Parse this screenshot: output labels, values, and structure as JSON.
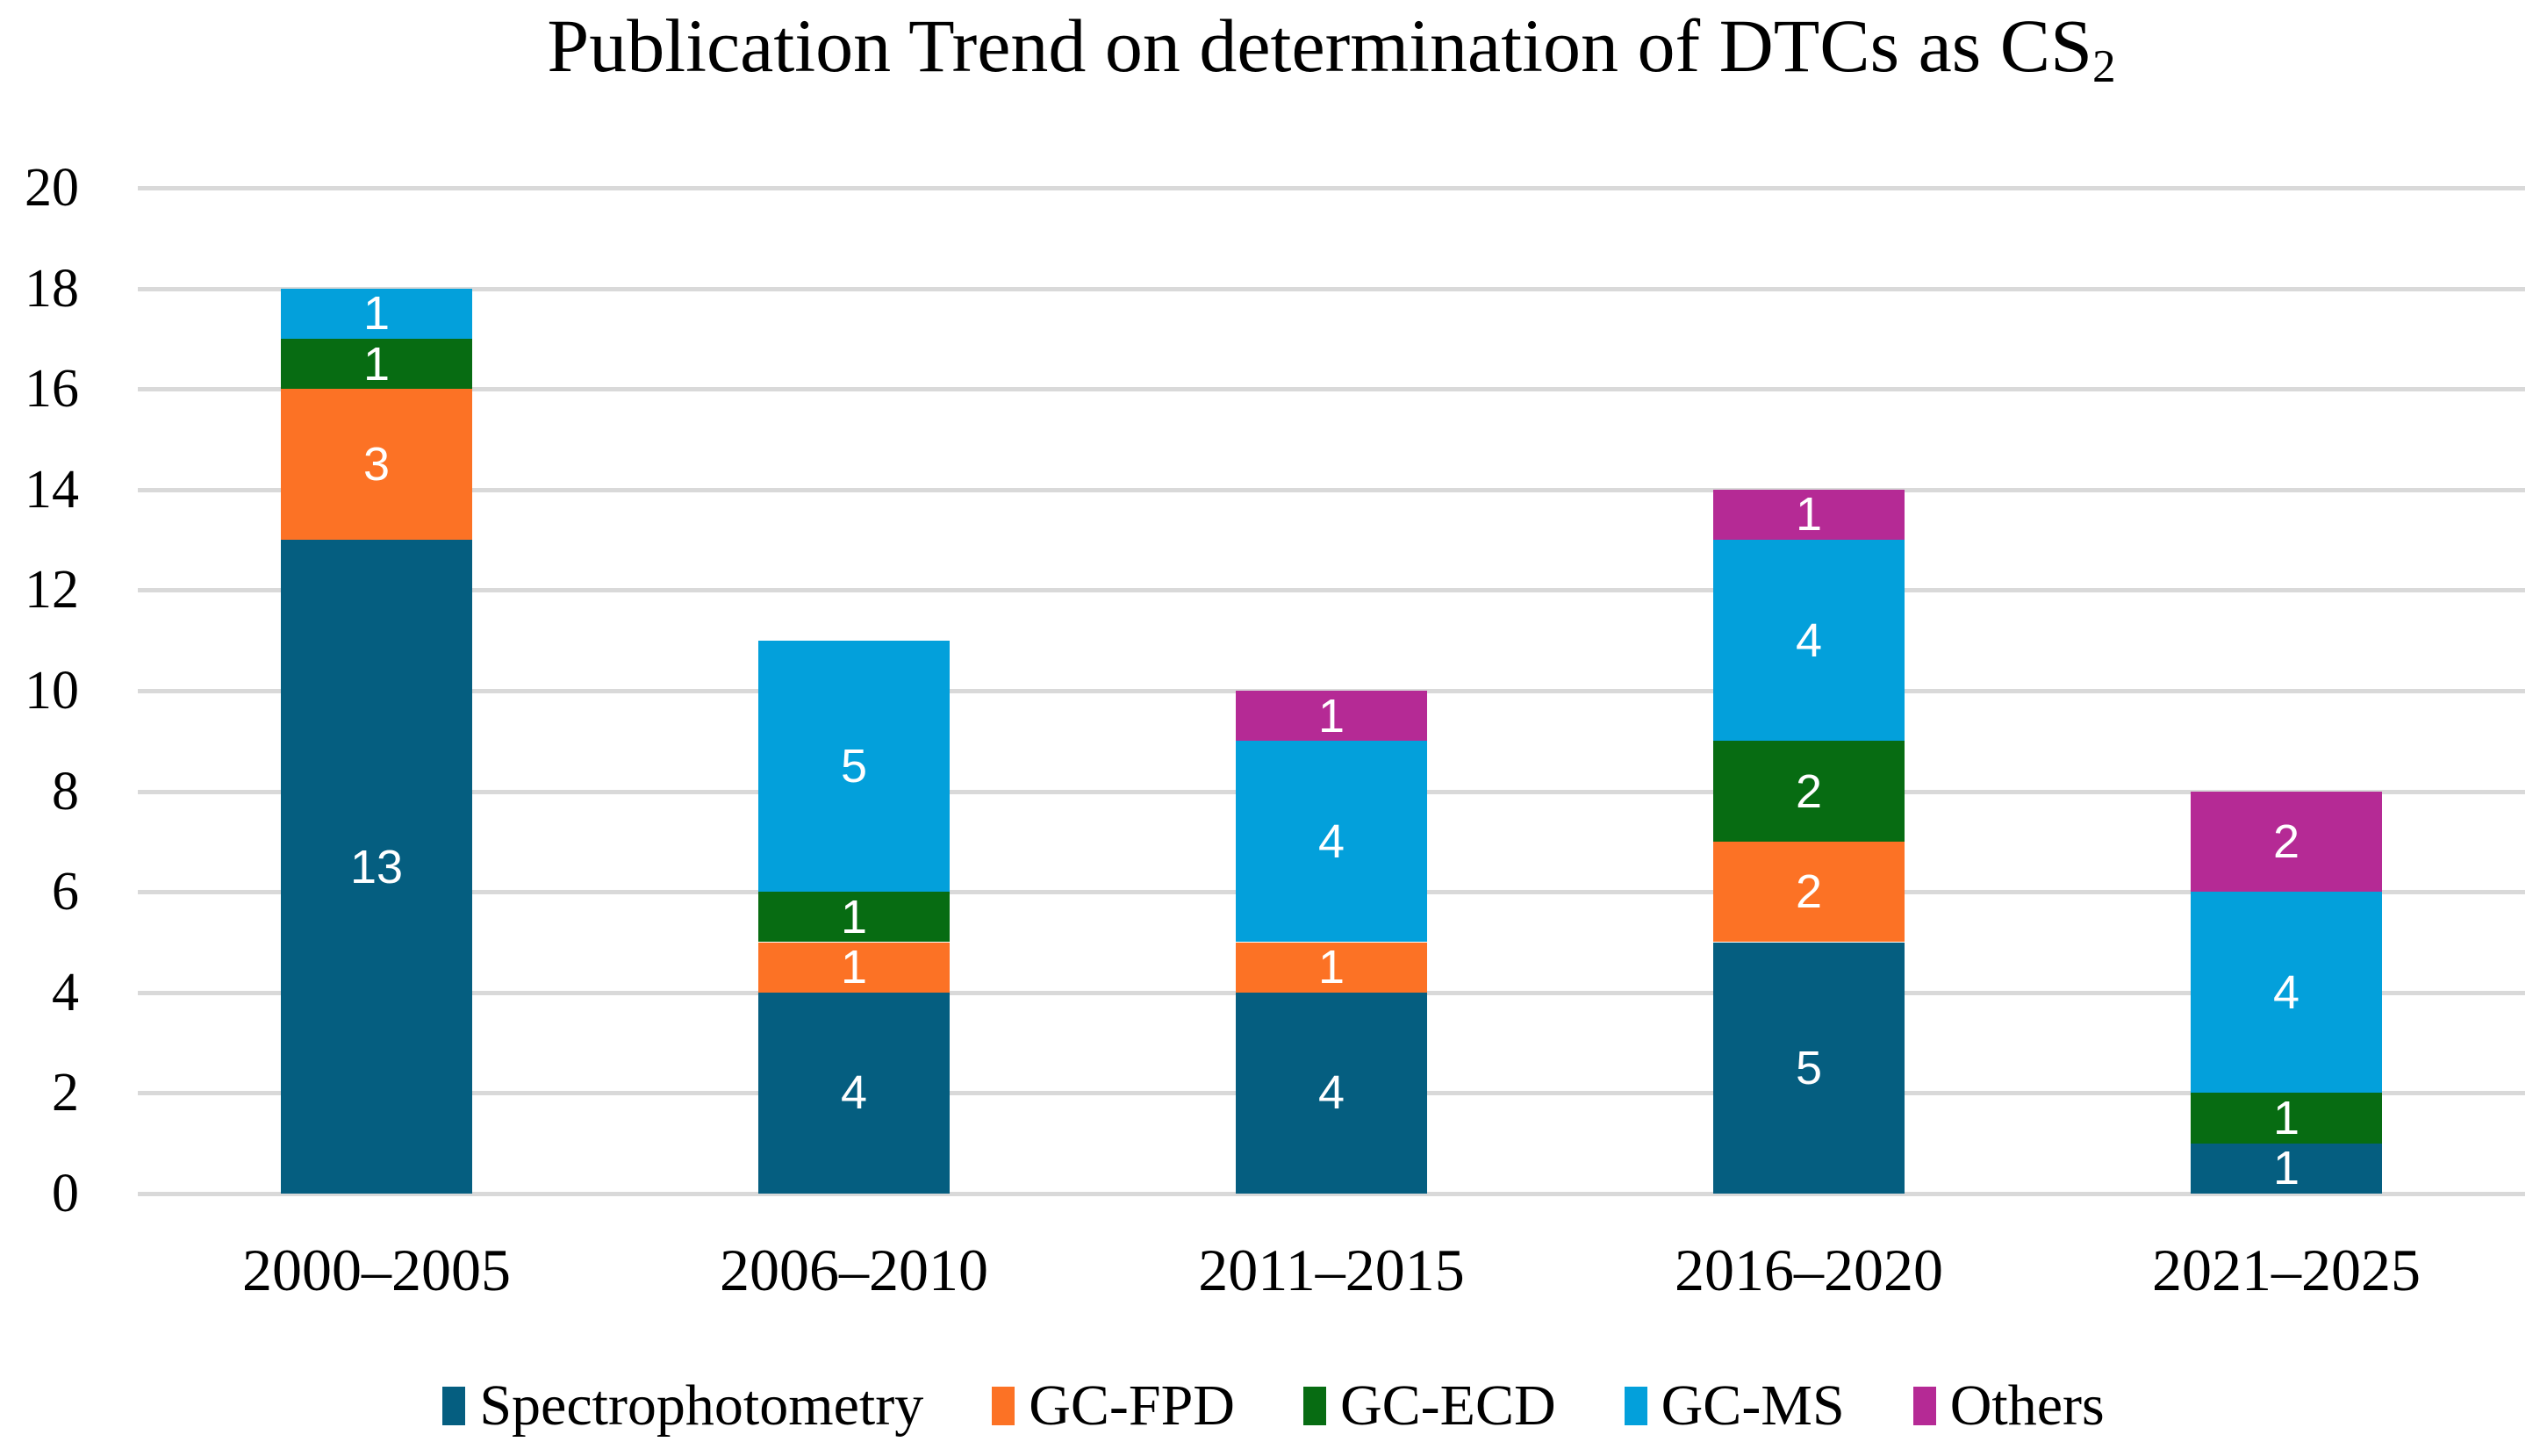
{
  "chart_data": {
    "type": "bar",
    "stacked": true,
    "title_main": "Publication Trend on determination of DTCs as CS",
    "title_subscript": "2",
    "categories": [
      "2000–2005",
      "2006–2010",
      "2011–2015",
      "2016–2020",
      "2021–2025"
    ],
    "series": [
      {
        "name": "Spectrophotometry",
        "color": "#055E80",
        "values": [
          13,
          4,
          4,
          5,
          1
        ]
      },
      {
        "name": "GC-FPD",
        "color": "#FC7225",
        "values": [
          3,
          1,
          1,
          2,
          0
        ]
      },
      {
        "name": "GC-ECD",
        "color": "#076C12",
        "values": [
          1,
          1,
          0,
          2,
          1
        ]
      },
      {
        "name": "GC-MS",
        "color": "#03A0DB",
        "values": [
          1,
          5,
          4,
          4,
          4
        ]
      },
      {
        "name": "Others",
        "color": "#B52A95",
        "values": [
          0,
          0,
          1,
          1,
          2
        ]
      }
    ],
    "totals": [
      18,
      11,
      10,
      14,
      8
    ],
    "xlabel": "",
    "ylabel": "",
    "ylim": [
      0,
      20
    ],
    "ytick_step": 2,
    "grid": true,
    "grid_color": "#D9D9D9",
    "value_label_color": "#FFFFFF",
    "legend_position": "bottom"
  }
}
